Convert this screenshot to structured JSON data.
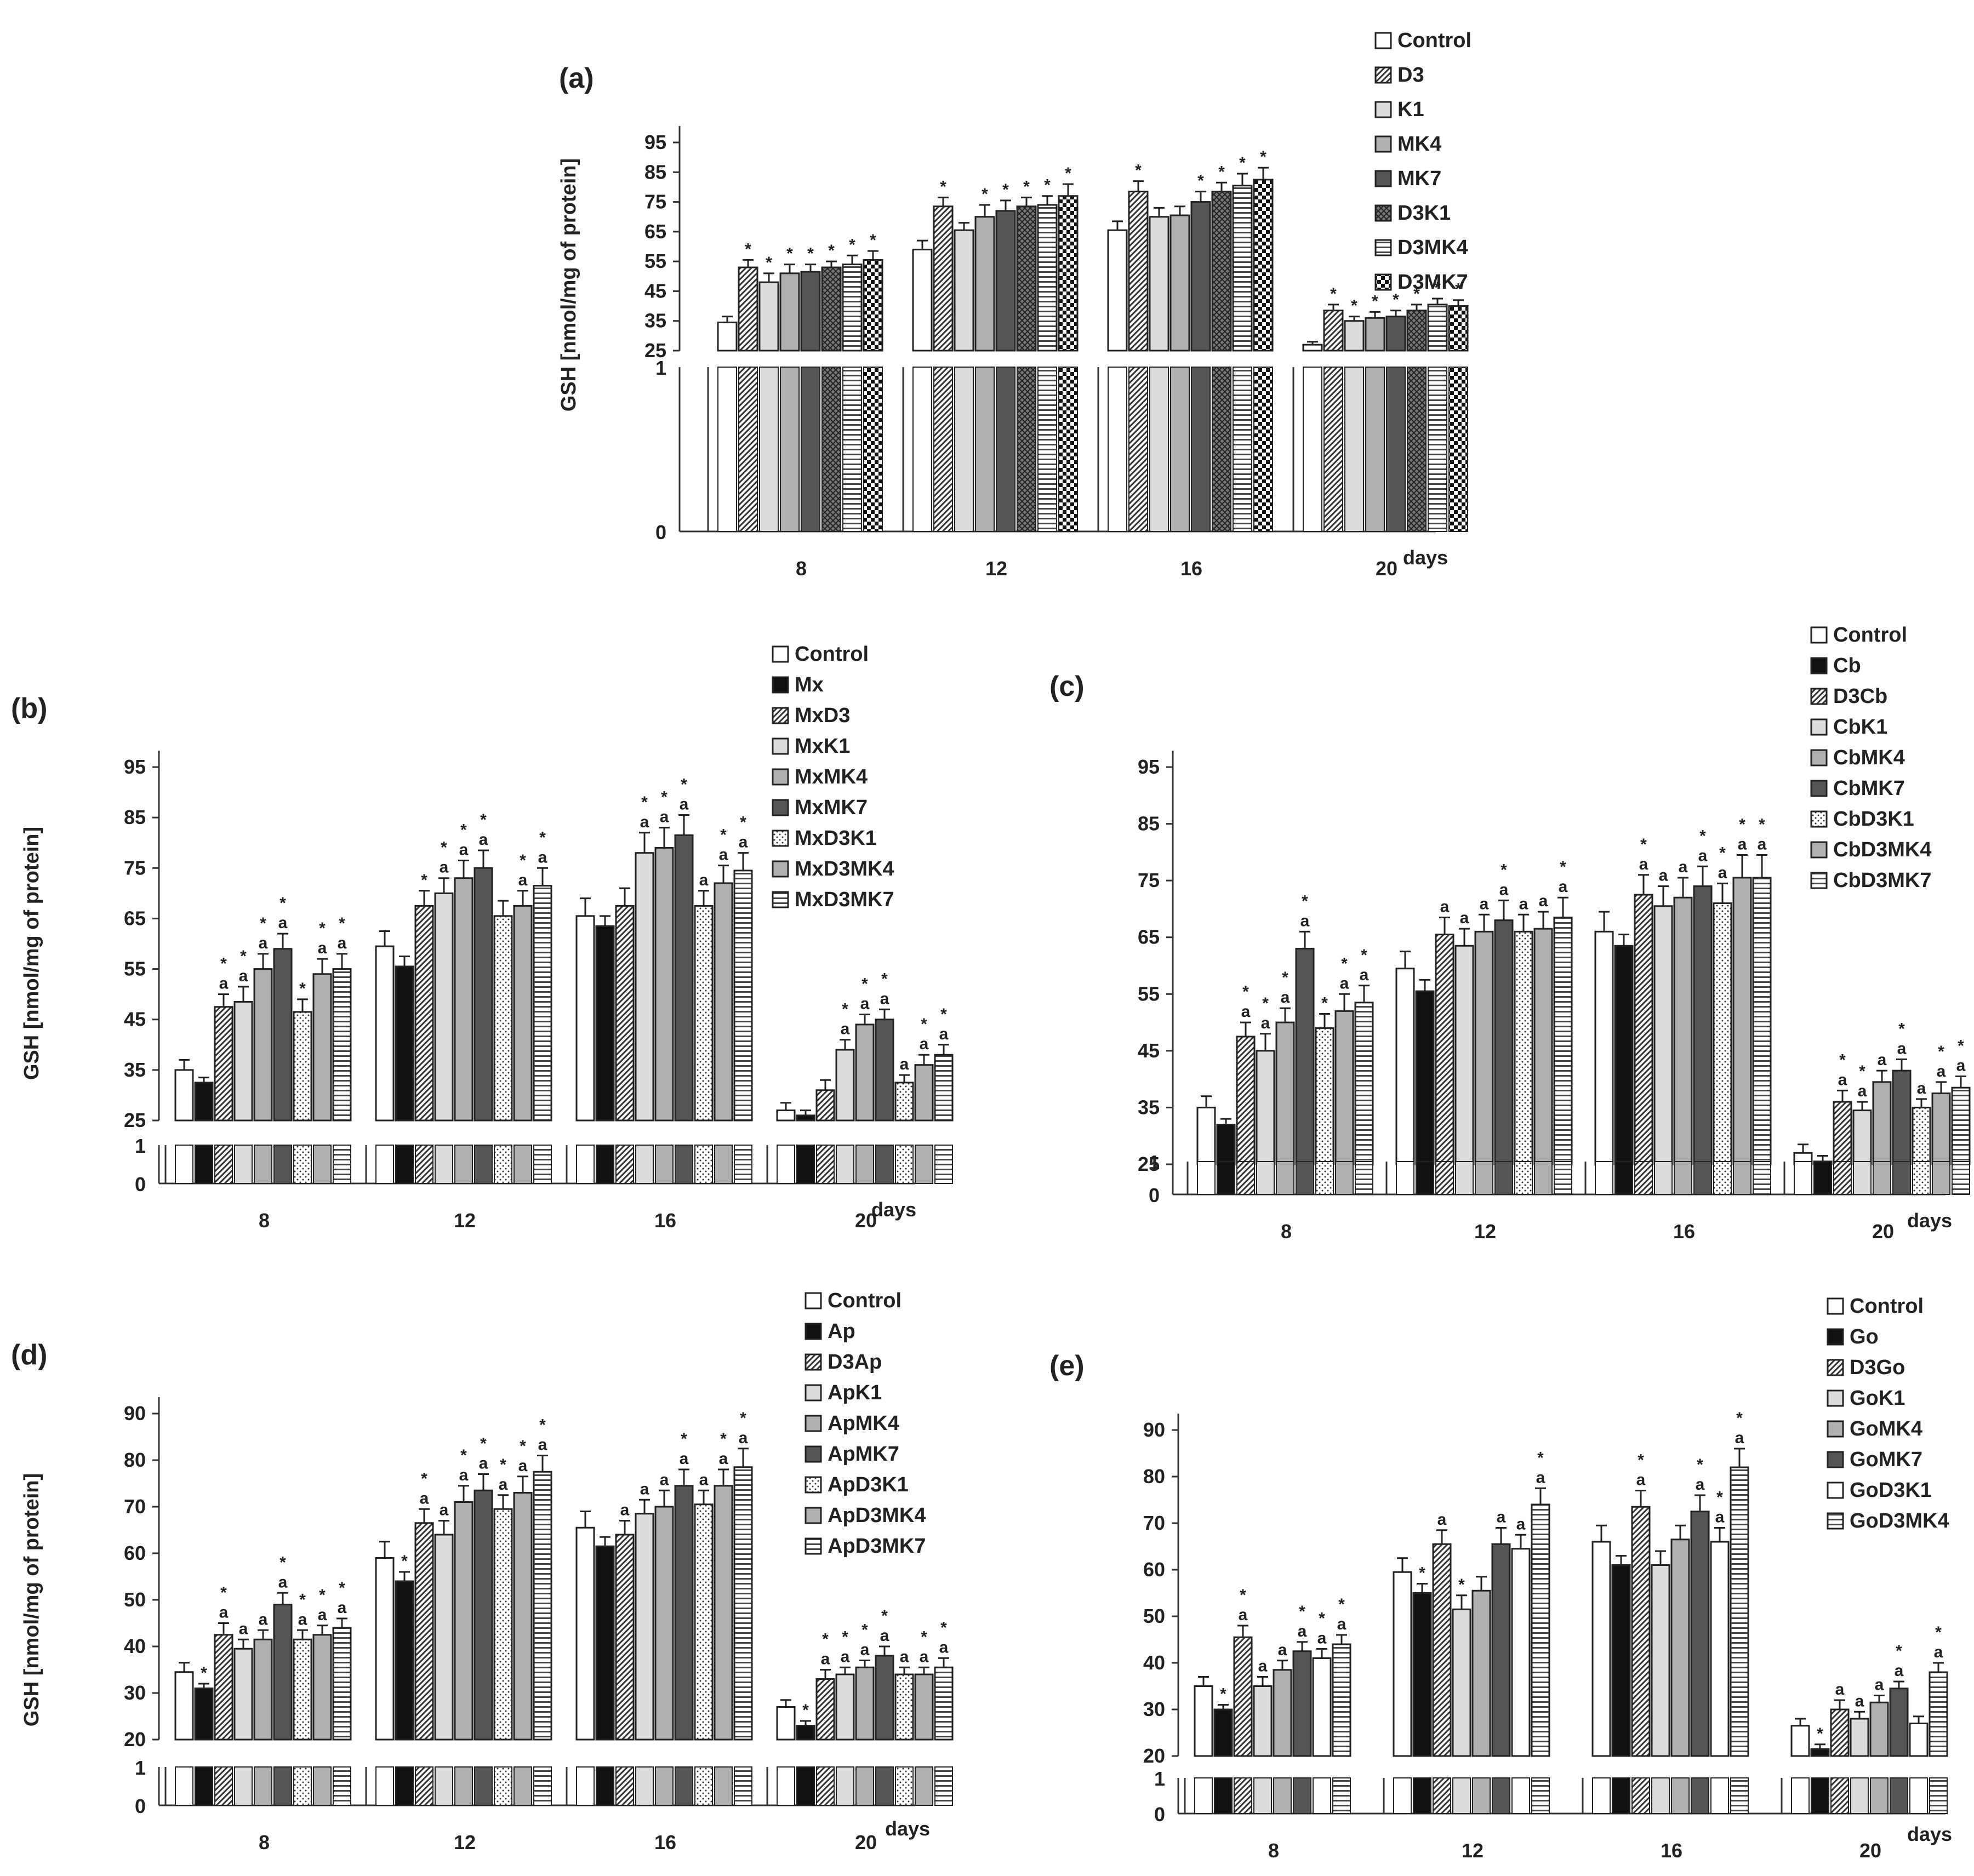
{
  "figure": {
    "description_label": "GSH content bar charts, panels (a)-(e)",
    "days_label": "days",
    "ylabel": "GSH  [nmol/mg of protein]"
  },
  "colors": {
    "Control": "#ffffff",
    "D3": "#ffffff",
    "K1": "#dcdcdc",
    "MK4": "#b0b0b0",
    "MK7": "#555555",
    "D3K1": "#9a9a9a",
    "D3MK4": "#ffffff",
    "D3MK7": "#ffffff",
    "solid_black": "#111111"
  },
  "chart_data": [
    {
      "id": "a",
      "type": "bar",
      "title": "(a)",
      "xlabel": "days",
      "ylabel": "GSH  [nmol/mg of protein]",
      "categories": [
        "8",
        "12",
        "16",
        "20"
      ],
      "ylim": [
        25,
        95
      ],
      "yticks": [
        25,
        35,
        45,
        55,
        65,
        75,
        85,
        95
      ],
      "break_ticks": [
        0,
        1
      ],
      "series": [
        {
          "name": "Control",
          "pattern": "white",
          "values": [
            34.5,
            59,
            65.5,
            27
          ],
          "errors": [
            2,
            3,
            3,
            1
          ],
          "markers": [
            "",
            "",
            "",
            ""
          ]
        },
        {
          "name": "D3",
          "pattern": "diag",
          "values": [
            53,
            73.5,
            78.5,
            38.5
          ],
          "errors": [
            2.5,
            3,
            3.5,
            2
          ],
          "markers": [
            "*",
            "*",
            "*",
            "*"
          ]
        },
        {
          "name": "K1",
          "pattern": "lightgray",
          "values": [
            48,
            65.5,
            70,
            35
          ],
          "errors": [
            3,
            2.5,
            3,
            1.5
          ],
          "markers": [
            "*",
            "",
            "",
            "*"
          ]
        },
        {
          "name": "MK4",
          "pattern": "gray",
          "values": [
            51,
            70,
            70.5,
            36
          ],
          "errors": [
            3,
            4,
            3,
            2
          ],
          "markers": [
            "*",
            "*",
            "",
            "*"
          ]
        },
        {
          "name": "MK7",
          "pattern": "dark",
          "values": [
            51.5,
            72,
            75,
            36.5
          ],
          "errors": [
            2.5,
            3.5,
            3.5,
            2
          ],
          "markers": [
            "*",
            "*",
            "*",
            "*"
          ]
        },
        {
          "name": "D3K1",
          "pattern": "cross",
          "values": [
            53,
            73.5,
            78.5,
            38.5
          ],
          "errors": [
            2,
            3,
            3,
            2
          ],
          "markers": [
            "*",
            "*",
            "*",
            "*"
          ]
        },
        {
          "name": "D3MK4",
          "pattern": "hstripe",
          "values": [
            54,
            74,
            80.5,
            40.5
          ],
          "errors": [
            3,
            3,
            4,
            2
          ],
          "markers": [
            "*",
            "*",
            "*",
            "*"
          ]
        },
        {
          "name": "D3MK7",
          "pattern": "checker",
          "values": [
            55.5,
            77,
            82.5,
            40
          ],
          "errors": [
            3,
            4,
            4,
            2
          ],
          "markers": [
            "*",
            "*",
            "*",
            "*"
          ]
        }
      ]
    },
    {
      "id": "b",
      "type": "bar",
      "title": "(b)",
      "xlabel": "days",
      "ylabel": "GSH  [nmol/mg of protein]",
      "categories": [
        "8",
        "12",
        "16",
        "20"
      ],
      "ylim": [
        25,
        95
      ],
      "yticks": [
        25,
        35,
        45,
        55,
        65,
        75,
        85,
        95
      ],
      "break_ticks": [
        0,
        1
      ],
      "series": [
        {
          "name": "Control",
          "pattern": "white",
          "values": [
            35,
            59.5,
            65.5,
            27
          ],
          "errors": [
            2,
            3,
            3.5,
            1.5
          ],
          "markers": [
            "",
            "",
            "",
            ""
          ]
        },
        {
          "name": "Mx",
          "pattern": "black",
          "values": [
            32.5,
            55.5,
            63.5,
            26
          ],
          "errors": [
            1,
            2,
            2,
            1
          ],
          "markers": [
            "",
            "",
            "",
            ""
          ]
        },
        {
          "name": "MxD3",
          "pattern": "diag",
          "values": [
            47.5,
            67.5,
            67.5,
            31
          ],
          "errors": [
            2.5,
            3,
            3.5,
            2
          ],
          "markers": [
            "*a",
            "*",
            "",
            ""
          ]
        },
        {
          "name": "MxK1",
          "pattern": "lightgray",
          "values": [
            48.5,
            70,
            78,
            39
          ],
          "errors": [
            3,
            3,
            4,
            2
          ],
          "markers": [
            "*a",
            "*a",
            "*a",
            "*a"
          ]
        },
        {
          "name": "MxMK4",
          "pattern": "gray",
          "values": [
            55,
            73,
            79,
            44
          ],
          "errors": [
            3,
            3.5,
            4,
            2
          ],
          "markers": [
            "*a",
            "*a",
            "*a",
            "*a"
          ]
        },
        {
          "name": "MxMK7",
          "pattern": "dark",
          "values": [
            59,
            75,
            81.5,
            45
          ],
          "errors": [
            3,
            3.5,
            4,
            2
          ],
          "markers": [
            "*a",
            "*a",
            "*a",
            "*a"
          ]
        },
        {
          "name": "MxD3K1",
          "pattern": "dotted",
          "values": [
            46.5,
            65.5,
            67.5,
            32.5
          ],
          "errors": [
            2.5,
            3,
            3,
            1.5
          ],
          "markers": [
            "*",
            "",
            "a",
            "a"
          ]
        },
        {
          "name": "MxD3MK4",
          "pattern": "gray",
          "values": [
            54,
            67.5,
            72,
            36
          ],
          "errors": [
            3,
            3,
            3.5,
            2
          ],
          "markers": [
            "*a",
            "*a",
            "*a",
            "*a"
          ]
        },
        {
          "name": "MxD3MK7",
          "pattern": "hstripe",
          "values": [
            55,
            71.5,
            74.5,
            38
          ],
          "errors": [
            3,
            3.5,
            3.5,
            2
          ],
          "markers": [
            "*a",
            "*a",
            "*a",
            "*a"
          ]
        }
      ]
    },
    {
      "id": "c",
      "type": "bar",
      "title": "(c)",
      "xlabel": "days",
      "ylabel": "",
      "categories": [
        "8",
        "12",
        "16",
        "20"
      ],
      "ylim": [
        25,
        95
      ],
      "yticks": [
        25,
        35,
        45,
        55,
        65,
        75,
        85,
        95
      ],
      "break_ticks": [
        0,
        1
      ],
      "series": [
        {
          "name": "Control",
          "pattern": "white",
          "values": [
            35,
            59.5,
            66,
            27
          ],
          "errors": [
            2,
            3,
            3.5,
            1.5
          ],
          "markers": [
            "",
            "",
            "",
            ""
          ]
        },
        {
          "name": "Cb",
          "pattern": "black",
          "values": [
            32,
            55.5,
            63.5,
            25.5
          ],
          "errors": [
            1,
            2,
            2,
            1
          ],
          "markers": [
            "",
            "",
            "",
            ""
          ]
        },
        {
          "name": "D3Cb",
          "pattern": "diag",
          "values": [
            47.5,
            65.5,
            72.5,
            36
          ],
          "errors": [
            2.5,
            3,
            3.5,
            2
          ],
          "markers": [
            "*a",
            "a",
            "*a",
            "*a"
          ]
        },
        {
          "name": "CbK1",
          "pattern": "lightgray",
          "values": [
            45,
            63.5,
            70.5,
            34.5
          ],
          "errors": [
            3,
            3,
            3.5,
            1.5
          ],
          "markers": [
            "*a",
            "a",
            "a",
            "*a"
          ]
        },
        {
          "name": "CbMK4",
          "pattern": "gray",
          "values": [
            50,
            66,
            72,
            39.5
          ],
          "errors": [
            2.5,
            3,
            3.5,
            2
          ],
          "markers": [
            "*a",
            "a",
            "a",
            "a"
          ]
        },
        {
          "name": "CbMK7",
          "pattern": "dark",
          "values": [
            63,
            68,
            74,
            41.5
          ],
          "errors": [
            3,
            3.5,
            3.5,
            2
          ],
          "markers": [
            "*a",
            "*a",
            "*a",
            "*a"
          ]
        },
        {
          "name": "CbD3K1",
          "pattern": "dotted",
          "values": [
            49,
            66,
            71,
            35
          ],
          "errors": [
            2.5,
            3,
            3.5,
            1.5
          ],
          "markers": [
            "*",
            "a",
            "*a",
            "a"
          ]
        },
        {
          "name": "CbD3MK4",
          "pattern": "gray",
          "values": [
            52,
            66.5,
            75.5,
            37.5
          ],
          "errors": [
            3,
            3,
            4,
            2
          ],
          "markers": [
            "*a",
            "a",
            "*a",
            "*a"
          ]
        },
        {
          "name": "CbD3MK7",
          "pattern": "hstripe",
          "values": [
            53.5,
            68.5,
            75.5,
            38.5
          ],
          "errors": [
            3,
            3.5,
            4,
            2
          ],
          "markers": [
            "*a",
            "*a",
            "*a",
            "*a"
          ]
        }
      ]
    },
    {
      "id": "d",
      "type": "bar",
      "title": "(d)",
      "xlabel": "days",
      "ylabel": "GSH  [nmol/mg of protein]",
      "categories": [
        "8",
        "12",
        "16",
        "20"
      ],
      "ylim": [
        20,
        90
      ],
      "yticks": [
        20,
        30,
        40,
        50,
        60,
        70,
        80,
        90
      ],
      "break_ticks": [
        0,
        1
      ],
      "series": [
        {
          "name": "Control",
          "pattern": "white",
          "values": [
            34.5,
            59,
            65.5,
            27
          ],
          "errors": [
            2,
            3.5,
            3.5,
            1.5
          ],
          "markers": [
            "",
            "",
            "",
            ""
          ]
        },
        {
          "name": "Ap",
          "pattern": "black",
          "values": [
            31,
            54,
            61.5,
            23
          ],
          "errors": [
            1,
            2,
            2,
            1
          ],
          "markers": [
            "*",
            "*",
            "",
            "*"
          ]
        },
        {
          "name": "D3Ap",
          "pattern": "diag",
          "values": [
            42.5,
            66.5,
            64,
            33
          ],
          "errors": [
            2.5,
            3,
            3,
            2
          ],
          "markers": [
            "*a",
            "*a",
            "a",
            "*a"
          ]
        },
        {
          "name": "ApK1",
          "pattern": "lightgray",
          "values": [
            39.5,
            64,
            68.5,
            34
          ],
          "errors": [
            2,
            3,
            3,
            1.5
          ],
          "markers": [
            "a",
            "a",
            "a",
            "*a"
          ]
        },
        {
          "name": "ApMK4",
          "pattern": "gray",
          "values": [
            41.5,
            71,
            70,
            35.5
          ],
          "errors": [
            2,
            3.5,
            3.5,
            1.5
          ],
          "markers": [
            "a",
            "*a",
            "a",
            "*a"
          ]
        },
        {
          "name": "ApMK7",
          "pattern": "dark",
          "values": [
            49,
            73.5,
            74.5,
            38
          ],
          "errors": [
            2.5,
            3.5,
            3.5,
            2
          ],
          "markers": [
            "*a",
            "*a",
            "*a",
            "*a"
          ]
        },
        {
          "name": "ApD3K1",
          "pattern": "dotted",
          "values": [
            41.5,
            69.5,
            70.5,
            34
          ],
          "errors": [
            2,
            3,
            3,
            1.5
          ],
          "markers": [
            "*a",
            "*a",
            "a",
            "a"
          ]
        },
        {
          "name": "ApD3MK4",
          "pattern": "gray",
          "values": [
            42.5,
            73,
            74.5,
            34
          ],
          "errors": [
            2,
            3.5,
            3.5,
            1.5
          ],
          "markers": [
            "*a",
            "*a",
            "*a",
            "*a"
          ]
        },
        {
          "name": "ApD3MK7",
          "pattern": "hstripe",
          "values": [
            44,
            77.5,
            78.5,
            35.5
          ],
          "errors": [
            2,
            3.5,
            4,
            2
          ],
          "markers": [
            "*a",
            "*a",
            "*a",
            "*a"
          ]
        }
      ]
    },
    {
      "id": "e",
      "type": "bar",
      "title": "(e)",
      "xlabel": "days",
      "ylabel": "",
      "categories": [
        "8",
        "12",
        "16",
        "20"
      ],
      "ylim": [
        20,
        90
      ],
      "yticks": [
        20,
        30,
        40,
        50,
        60,
        70,
        80,
        90
      ],
      "break_ticks": [
        0,
        1
      ],
      "series": [
        {
          "name": "Control",
          "pattern": "white",
          "values": [
            35,
            59.5,
            66,
            26.5
          ],
          "errors": [
            2,
            3,
            3.5,
            1.5
          ],
          "markers": [
            "",
            "",
            "",
            ""
          ]
        },
        {
          "name": "Go",
          "pattern": "black",
          "values": [
            30,
            55,
            61,
            21.5
          ],
          "errors": [
            1,
            2,
            2,
            1
          ],
          "markers": [
            "*",
            "*",
            "",
            "*"
          ]
        },
        {
          "name": "D3Go",
          "pattern": "diag",
          "values": [
            45.5,
            65.5,
            73.5,
            30
          ],
          "errors": [
            2.5,
            3,
            3.5,
            2
          ],
          "markers": [
            "*a",
            "a",
            "*a",
            "a"
          ]
        },
        {
          "name": "GoK1",
          "pattern": "lightgray",
          "values": [
            35,
            51.5,
            61,
            28
          ],
          "errors": [
            2,
            3,
            3,
            1.5
          ],
          "markers": [
            "a",
            "*",
            "",
            "a"
          ]
        },
        {
          "name": "GoMK4",
          "pattern": "gray",
          "values": [
            38.5,
            55.5,
            66.5,
            31.5
          ],
          "errors": [
            2,
            3,
            3,
            1.5
          ],
          "markers": [
            "a",
            "",
            "",
            "a"
          ]
        },
        {
          "name": "GoMK7",
          "pattern": "dark",
          "values": [
            42.5,
            65.5,
            72.5,
            34.5
          ],
          "errors": [
            2,
            3.5,
            3.5,
            1.5
          ],
          "markers": [
            "*a",
            "a",
            "*a",
            "*a"
          ]
        },
        {
          "name": "GoD3K1",
          "pattern": "white",
          "values": [
            41,
            64.5,
            66,
            27
          ],
          "errors": [
            2,
            3,
            3,
            1.5
          ],
          "markers": [
            "*a",
            "a",
            "*a",
            ""
          ]
        },
        {
          "name": "GoD3MK4",
          "pattern": "hstripe",
          "values": [
            44,
            74,
            82,
            38
          ],
          "errors": [
            2,
            3.5,
            4,
            2
          ],
          "markers": [
            "*a",
            "*a",
            "*a",
            "*a"
          ]
        }
      ]
    }
  ]
}
